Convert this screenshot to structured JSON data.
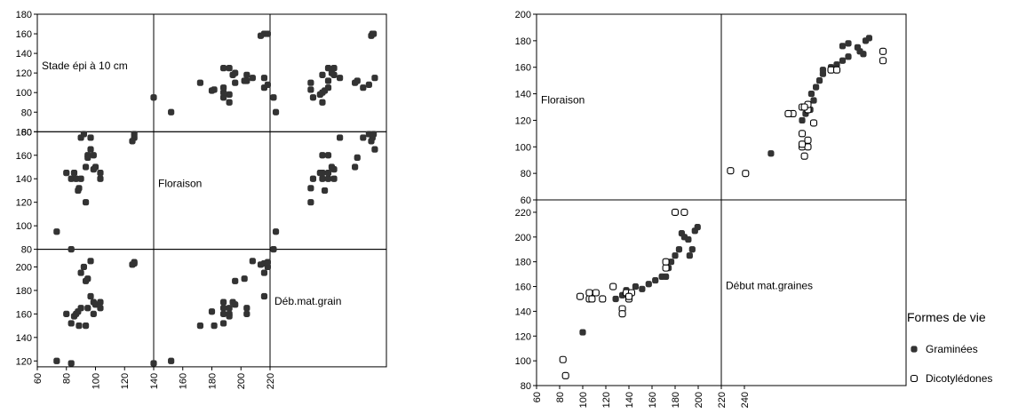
{
  "chart_data": [
    {
      "type": "scatter",
      "title": "",
      "matrix": "3x3",
      "variables": [
        "Stade épi à 10 cm",
        "Floraison",
        "Déb.mat.grain"
      ],
      "ranges": {
        "row": [
          [
            60,
            180
          ],
          [
            80,
            180
          ],
          [
            115,
            215
          ]
        ],
        "col": [
          [
            60,
            180
          ],
          [
            80,
            180
          ],
          [
            115,
            215
          ]
        ]
      },
      "row_ticks": [
        [
          60,
          80,
          100,
          120,
          140,
          160,
          180
        ],
        [
          80,
          100,
          120,
          140,
          160,
          180
        ],
        [
          120,
          140,
          160,
          180,
          200
        ]
      ],
      "x_ticks": [
        60,
        80,
        100,
        120,
        140,
        160,
        180,
        200,
        220
      ],
      "x_tick_labels": [
        "60",
        "80",
        "100",
        "120",
        "140",
        "160",
        "180",
        "200",
        "220"
      ],
      "grid": false,
      "marker_color": "#333333",
      "series": [
        {
          "values": [
            [
              80,
              95,
              120
            ],
            [
              95,
              80,
              118
            ],
            [
              90,
              145,
              160
            ],
            [
              95,
              140,
              152
            ],
            [
              98,
              145,
              158
            ],
            [
              100,
              140,
              160
            ],
            [
              102,
              130,
              162
            ],
            [
              103,
              132,
              150
            ],
            [
              105,
              140,
              165
            ],
            [
              105,
              175,
              195
            ],
            [
              108,
              178,
              200
            ],
            [
              110,
              120,
              150
            ],
            [
              110,
              150,
              188
            ],
            [
              112,
              160,
              165
            ],
            [
              112,
              158,
              190
            ],
            [
              115,
              165,
              205
            ],
            [
              115,
              175,
              175
            ],
            [
              118,
              160,
              160
            ],
            [
              118,
              148,
              170
            ],
            [
              120,
              150,
              168
            ],
            [
              125,
              140,
              170
            ],
            [
              125,
              145,
              165
            ],
            [
              160,
              175,
              203
            ],
            [
              158,
              172,
              202
            ],
            [
              160,
              178,
              204
            ]
          ]
        }
      ]
    },
    {
      "type": "scatter",
      "title": "",
      "matrix": "2x2",
      "variables": [
        "Floraison",
        "Début mat.graines"
      ],
      "ranges": {
        "row": [
          [
            60,
            200
          ],
          [
            80,
            230
          ]
        ],
        "col": [
          [
            60,
            200
          ],
          [
            80,
            240
          ]
        ]
      },
      "row_ticks": [
        [
          60,
          80,
          100,
          120,
          140,
          160,
          180,
          200
        ],
        [
          80,
          100,
          120,
          140,
          160,
          180,
          200,
          220
        ]
      ],
      "x_ticks": [
        60,
        80,
        100,
        120,
        140,
        160,
        180,
        200,
        220,
        240
      ],
      "x_tick_labels": [
        "60",
        "80",
        "100",
        "120",
        "140",
        "160",
        "180",
        "200",
        "220",
        "240"
      ],
      "grid": false,
      "legend": {
        "title": "Formes de vie",
        "position": "right"
      },
      "series": [
        {
          "name": "Graminées",
          "marker": "filled",
          "color": "#333333",
          "values": [
            [
              80,
              101
            ],
            [
              82,
              88
            ],
            [
              95,
              123
            ],
            [
              120,
              150
            ],
            [
              125,
              153
            ],
            [
              128,
              157
            ],
            [
              130,
              150
            ],
            [
              135,
              160
            ],
            [
              140,
              158
            ],
            [
              145,
              162
            ],
            [
              150,
              165
            ],
            [
              155,
              168
            ],
            [
              158,
              168
            ],
            [
              160,
              175
            ],
            [
              162,
              180
            ],
            [
              165,
              185
            ],
            [
              168,
              190
            ],
            [
              170,
              203
            ],
            [
              172,
              200
            ],
            [
              175,
              198
            ],
            [
              176,
              185
            ],
            [
              178,
              190
            ],
            [
              180,
              205
            ],
            [
              182,
              208
            ]
          ]
        },
        {
          "name": "Dicotylédones",
          "marker": "open",
          "color": "#000000",
          "values": [
            [
              80,
              101
            ],
            [
              82,
              88
            ],
            [
              93,
              152
            ],
            [
              100,
              150
            ],
            [
              100,
              155
            ],
            [
              102,
              150
            ],
            [
              105,
              155
            ],
            [
              110,
              150
            ],
            [
              118,
              160
            ],
            [
              125,
              142
            ],
            [
              125,
              138
            ],
            [
              128,
              155
            ],
            [
              130,
              150
            ],
            [
              132,
              155
            ],
            [
              158,
              175
            ],
            [
              158,
              180
            ],
            [
              165,
              220
            ],
            [
              172,
              220
            ],
            [
              130,
              152
            ]
          ]
        }
      ]
    }
  ]
}
